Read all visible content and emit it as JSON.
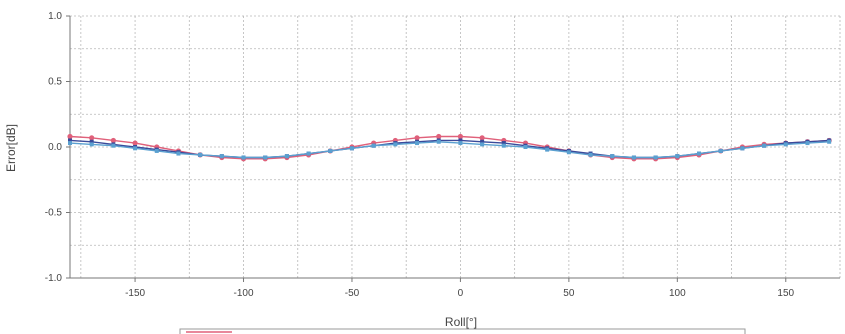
{
  "chart_data": {
    "type": "line",
    "xlabel": "Roll[°]",
    "ylabel": "Error[dB]",
    "xlim": [
      -180,
      175
    ],
    "ylim": [
      -1.0,
      1.0
    ],
    "x_ticks": [
      -150,
      -100,
      -50,
      0,
      50,
      100,
      150
    ],
    "x_tick_labels": [
      "-150",
      "-100",
      "-50",
      "0",
      "50",
      "100",
      "150"
    ],
    "y_ticks": [
      -1.0,
      -0.5,
      0.0,
      0.5,
      1.0
    ],
    "y_tick_labels": [
      "-1.0",
      "-0.5",
      "0.0",
      "0.5",
      "1.0"
    ],
    "grid": true,
    "legend": "bottom-center",
    "x": [
      -180,
      -170,
      -160,
      -150,
      -140,
      -130,
      -120,
      -110,
      -100,
      -90,
      -80,
      -70,
      -60,
      -50,
      -40,
      -30,
      -20,
      -10,
      0,
      10,
      20,
      30,
      40,
      50,
      60,
      70,
      80,
      90,
      100,
      110,
      120,
      130,
      140,
      150,
      160,
      170
    ],
    "series": [
      {
        "color": "#e0607a",
        "values": [
          0.08,
          0.07,
          0.05,
          0.03,
          0.0,
          -0.03,
          -0.06,
          -0.08,
          -0.09,
          -0.09,
          -0.08,
          -0.06,
          -0.03,
          0.0,
          0.03,
          0.05,
          0.07,
          0.08,
          0.08,
          0.07,
          0.05,
          0.03,
          0.0,
          -0.03,
          -0.06,
          -0.08,
          -0.09,
          -0.09,
          -0.08,
          -0.06,
          -0.03,
          0.0,
          0.02,
          0.03,
          0.04,
          0.05
        ]
      },
      {
        "color": "#3a4a9a",
        "values": [
          0.05,
          0.04,
          0.02,
          0.0,
          -0.02,
          -0.04,
          -0.06,
          -0.07,
          -0.08,
          -0.08,
          -0.07,
          -0.05,
          -0.03,
          -0.01,
          0.01,
          0.03,
          0.04,
          0.05,
          0.05,
          0.04,
          0.03,
          0.01,
          -0.01,
          -0.03,
          -0.05,
          -0.07,
          -0.08,
          -0.08,
          -0.07,
          -0.05,
          -0.03,
          -0.01,
          0.01,
          0.03,
          0.04,
          0.05
        ]
      },
      {
        "color": "#5aa0d0",
        "values": [
          0.03,
          0.02,
          0.01,
          -0.01,
          -0.03,
          -0.05,
          -0.06,
          -0.07,
          -0.08,
          -0.08,
          -0.07,
          -0.05,
          -0.03,
          -0.01,
          0.01,
          0.02,
          0.03,
          0.04,
          0.03,
          0.02,
          0.01,
          0.0,
          -0.02,
          -0.04,
          -0.06,
          -0.07,
          -0.08,
          -0.08,
          -0.07,
          -0.05,
          -0.03,
          -0.01,
          0.01,
          0.02,
          0.03,
          0.04
        ]
      }
    ]
  }
}
